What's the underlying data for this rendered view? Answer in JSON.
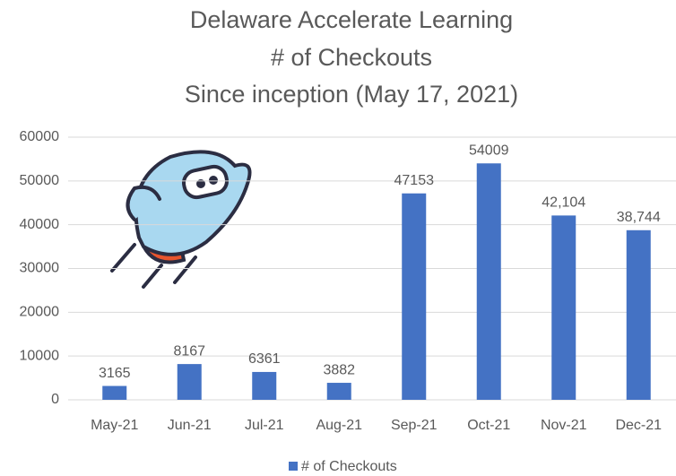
{
  "chart_data": {
    "type": "bar",
    "title": [
      "Delaware Accelerate Learning",
      "# of Checkouts",
      "Since inception (May 17, 2021)"
    ],
    "categories": [
      "May-21",
      "Jun-21",
      "Jul-21",
      "Aug-21",
      "Sep-21",
      "Oct-21",
      "Nov-21",
      "Dec-21"
    ],
    "series": [
      {
        "name": "# of Checkouts",
        "color": "#4472c4",
        "values": [
          3165,
          8167,
          6361,
          3882,
          47153,
          54009,
          42104,
          38744
        ],
        "value_labels": [
          "3165",
          "8167",
          "6361",
          "3882",
          "47153",
          "54009",
          "42,104",
          "38,744"
        ]
      }
    ],
    "ylim": [
      0,
      60000
    ],
    "yticks": [
      0,
      10000,
      20000,
      30000,
      40000,
      50000,
      60000
    ],
    "grid": true,
    "legend": "bottom"
  }
}
